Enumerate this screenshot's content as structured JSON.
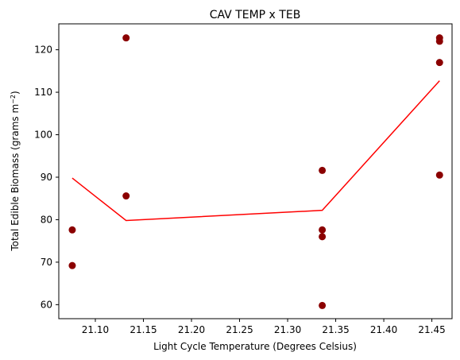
{
  "chart_data": {
    "type": "scatter",
    "title": "CAV TEMP x TEB",
    "xlabel": "Light Cycle Temperature (Degrees Celsius)",
    "ylabel_main": "Total Edible Biomass (grams m",
    "ylabel_sup": "−2",
    "ylabel_close": ")",
    "xlim": [
      21.062,
      21.471
    ],
    "ylim": [
      56.7,
      126.1
    ],
    "xticks": [
      21.1,
      21.15,
      21.2,
      21.25,
      21.3,
      21.35,
      21.4,
      21.45
    ],
    "xtick_labels": [
      "21.10",
      "21.15",
      "21.20",
      "21.25",
      "21.30",
      "21.35",
      "21.40",
      "21.45"
    ],
    "yticks": [
      60,
      70,
      80,
      90,
      100,
      110,
      120
    ],
    "ytick_labels": [
      "60",
      "70",
      "80",
      "90",
      "100",
      "110",
      "120"
    ],
    "grid": false,
    "colors": {
      "points": "#8b0000",
      "line": "#ff0000"
    },
    "series": [
      {
        "kind": "points",
        "x": [
          21.076,
          21.076,
          21.132,
          21.132,
          21.336,
          21.336,
          21.336,
          21.336,
          21.458,
          21.458,
          21.458,
          21.458
        ],
        "y": [
          77.6,
          69.2,
          122.8,
          85.6,
          91.6,
          77.6,
          76.0,
          59.8,
          122.8,
          122.0,
          117.0,
          90.5
        ]
      },
      {
        "kind": "line",
        "x": [
          21.076,
          21.132,
          21.336,
          21.458
        ],
        "y": [
          89.8,
          79.8,
          82.2,
          112.7
        ]
      }
    ]
  }
}
